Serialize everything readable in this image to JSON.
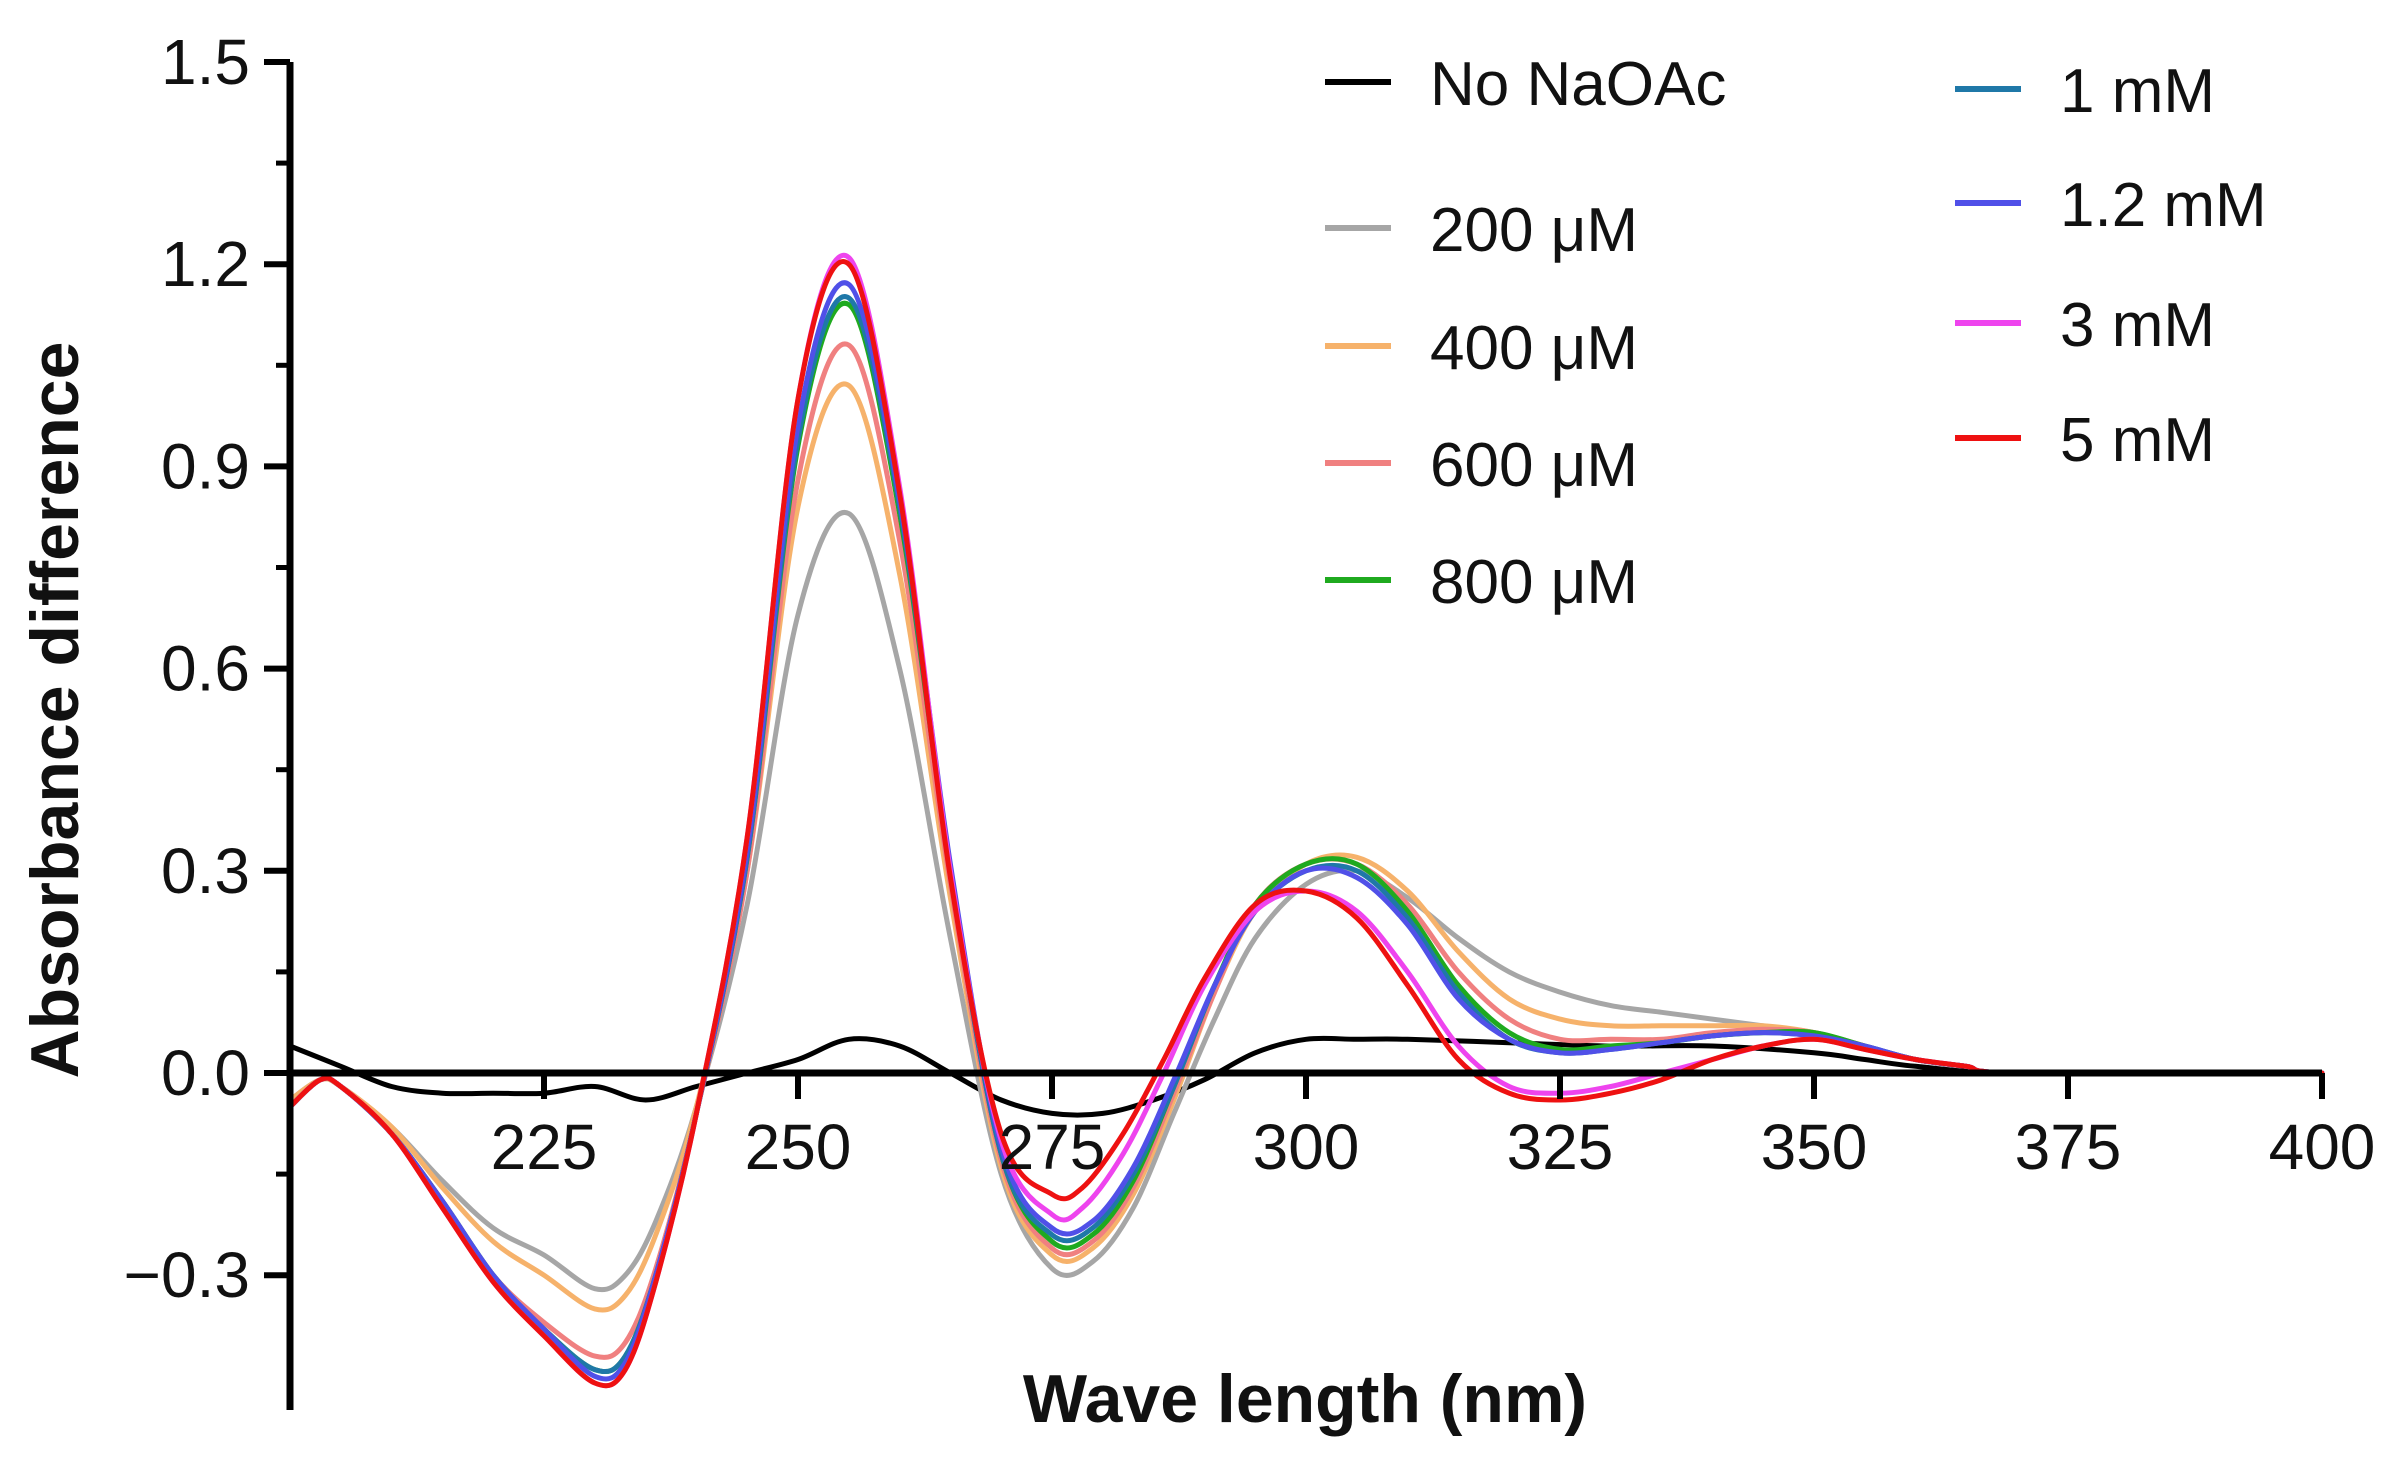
{
  "chart_data": {
    "type": "line",
    "title": "",
    "xlabel": "Wave length (nm)",
    "ylabel": "Absorbance difference",
    "xlim": [
      200,
      400
    ],
    "ylim": [
      -0.5,
      1.5
    ],
    "xticks": [
      225,
      250,
      275,
      300,
      325,
      350,
      375,
      400
    ],
    "xtick_labels": [
      "225",
      "250",
      "275",
      "300",
      "325",
      "350",
      "375",
      "400"
    ],
    "yticks": [
      -0.3,
      0.0,
      0.3,
      0.6,
      0.9,
      1.2,
      1.5
    ],
    "ytick_labels": [
      "−0.3",
      "0.0",
      "0.3",
      "0.6",
      "0.9",
      "1.2",
      "1.5"
    ],
    "grid": false,
    "legend_position": "top-right",
    "series": [
      {
        "name": "No NaOAc",
        "color": "#000000",
        "x": [
          200,
          205,
          210,
          215,
          220,
          225,
          230,
          235,
          240,
          245,
          250,
          255,
          260,
          265,
          270,
          275,
          280,
          285,
          290,
          295,
          300,
          305,
          310,
          320,
          330,
          340,
          350,
          355,
          360,
          370,
          400
        ],
        "y": [
          0.04,
          0.01,
          -0.02,
          -0.03,
          -0.03,
          -0.03,
          -0.02,
          -0.04,
          -0.02,
          0.0,
          0.02,
          0.05,
          0.04,
          0.0,
          -0.04,
          -0.06,
          -0.06,
          -0.04,
          -0.01,
          0.03,
          0.05,
          0.05,
          0.05,
          0.045,
          0.04,
          0.04,
          0.03,
          0.02,
          0.01,
          0.0,
          0.0
        ]
      },
      {
        "name": "200 μM",
        "color": "#a6a6a6",
        "x": [
          200,
          203,
          205,
          210,
          215,
          220,
          225,
          230,
          233,
          236,
          240,
          245,
          250,
          255,
          260,
          265,
          270,
          275,
          279,
          283,
          287,
          291,
          295,
          300,
          305,
          310,
          315,
          320,
          325,
          330,
          335,
          340,
          345,
          350,
          355,
          360,
          365,
          370,
          400
        ],
        "y": [
          -0.04,
          -0.01,
          -0.02,
          -0.08,
          -0.16,
          -0.23,
          -0.27,
          -0.32,
          -0.3,
          -0.22,
          -0.05,
          0.25,
          0.68,
          0.83,
          0.6,
          0.2,
          -0.15,
          -0.29,
          -0.28,
          -0.2,
          -0.06,
          0.08,
          0.2,
          0.28,
          0.3,
          0.26,
          0.2,
          0.15,
          0.12,
          0.1,
          0.09,
          0.08,
          0.07,
          0.06,
          0.04,
          0.02,
          0.01,
          0.0,
          0.0
        ]
      },
      {
        "name": "400 μM",
        "color": "#f6b26b",
        "x": [
          200,
          203,
          205,
          210,
          215,
          220,
          225,
          230,
          233,
          236,
          240,
          245,
          250,
          255,
          260,
          265,
          270,
          275,
          279,
          283,
          287,
          291,
          295,
          300,
          305,
          310,
          315,
          320,
          325,
          330,
          335,
          340,
          345,
          350,
          355,
          360,
          365,
          370,
          400
        ],
        "y": [
          -0.04,
          -0.01,
          -0.02,
          -0.08,
          -0.17,
          -0.25,
          -0.3,
          -0.35,
          -0.33,
          -0.24,
          -0.05,
          0.3,
          0.84,
          1.02,
          0.74,
          0.26,
          -0.14,
          -0.27,
          -0.26,
          -0.18,
          -0.04,
          0.12,
          0.24,
          0.31,
          0.32,
          0.27,
          0.18,
          0.11,
          0.08,
          0.07,
          0.07,
          0.07,
          0.07,
          0.06,
          0.04,
          0.02,
          0.01,
          0.0,
          0.0
        ]
      },
      {
        "name": "600 μM",
        "color": "#f08080",
        "x": [
          200,
          203,
          205,
          210,
          215,
          220,
          225,
          230,
          233,
          236,
          240,
          245,
          250,
          255,
          260,
          265,
          270,
          275,
          279,
          283,
          287,
          291,
          295,
          300,
          305,
          310,
          315,
          320,
          325,
          330,
          335,
          340,
          345,
          350,
          355,
          360,
          365,
          370,
          400
        ],
        "y": [
          -0.05,
          -0.01,
          -0.02,
          -0.09,
          -0.19,
          -0.3,
          -0.37,
          -0.42,
          -0.4,
          -0.29,
          -0.06,
          0.3,
          0.88,
          1.08,
          0.79,
          0.28,
          -0.13,
          -0.26,
          -0.25,
          -0.17,
          -0.03,
          0.12,
          0.25,
          0.31,
          0.31,
          0.25,
          0.15,
          0.08,
          0.05,
          0.05,
          0.05,
          0.06,
          0.065,
          0.06,
          0.04,
          0.02,
          0.01,
          0.0,
          0.0
        ]
      },
      {
        "name": "800 μM",
        "color": "#1faa1f",
        "x": [
          200,
          203,
          205,
          210,
          215,
          220,
          225,
          230,
          233,
          236,
          240,
          245,
          250,
          255,
          260,
          265,
          270,
          275,
          279,
          283,
          287,
          291,
          295,
          300,
          305,
          310,
          315,
          320,
          325,
          330,
          335,
          340,
          345,
          350,
          355,
          360,
          365,
          370,
          400
        ],
        "y": [
          -0.05,
          -0.01,
          -0.02,
          -0.09,
          -0.19,
          -0.3,
          -0.38,
          -0.44,
          -0.42,
          -0.3,
          -0.06,
          0.32,
          0.93,
          1.14,
          0.83,
          0.3,
          -0.12,
          -0.25,
          -0.24,
          -0.16,
          -0.02,
          0.13,
          0.25,
          0.31,
          0.31,
          0.24,
          0.13,
          0.06,
          0.035,
          0.04,
          0.045,
          0.055,
          0.06,
          0.06,
          0.04,
          0.02,
          0.01,
          0.0,
          0.0
        ]
      },
      {
        "name": "1 mM",
        "color": "#1f78a8",
        "x": [
          200,
          203,
          205,
          210,
          215,
          220,
          225,
          230,
          233,
          236,
          240,
          245,
          250,
          255,
          260,
          265,
          270,
          275,
          279,
          283,
          287,
          291,
          295,
          300,
          305,
          310,
          315,
          320,
          325,
          330,
          335,
          340,
          345,
          350,
          355,
          360,
          365,
          370,
          400
        ],
        "y": [
          -0.05,
          -0.01,
          -0.02,
          -0.09,
          -0.19,
          -0.3,
          -0.38,
          -0.44,
          -0.42,
          -0.3,
          -0.06,
          0.32,
          0.94,
          1.15,
          0.84,
          0.3,
          -0.12,
          -0.24,
          -0.23,
          -0.15,
          -0.02,
          0.13,
          0.24,
          0.3,
          0.3,
          0.23,
          0.12,
          0.05,
          0.03,
          0.035,
          0.045,
          0.055,
          0.06,
          0.055,
          0.04,
          0.02,
          0.01,
          0.0,
          0.0
        ]
      },
      {
        "name": "1.2 mM",
        "color": "#5050e8",
        "x": [
          200,
          203,
          205,
          210,
          215,
          220,
          225,
          230,
          233,
          236,
          240,
          245,
          250,
          255,
          260,
          265,
          270,
          275,
          279,
          283,
          287,
          291,
          295,
          300,
          305,
          310,
          315,
          320,
          325,
          330,
          335,
          340,
          345,
          350,
          355,
          360,
          365,
          370,
          400
        ],
        "y": [
          -0.05,
          -0.01,
          -0.02,
          -0.09,
          -0.19,
          -0.3,
          -0.38,
          -0.45,
          -0.43,
          -0.3,
          -0.06,
          0.33,
          0.96,
          1.17,
          0.85,
          0.31,
          -0.11,
          -0.23,
          -0.22,
          -0.14,
          -0.01,
          0.13,
          0.24,
          0.3,
          0.29,
          0.22,
          0.11,
          0.05,
          0.03,
          0.035,
          0.045,
          0.055,
          0.06,
          0.055,
          0.04,
          0.02,
          0.01,
          0.0,
          0.0
        ]
      },
      {
        "name": "3 mM",
        "color": "#ee44ee",
        "x": [
          200,
          203,
          205,
          210,
          215,
          220,
          225,
          230,
          233,
          236,
          240,
          245,
          250,
          255,
          260,
          265,
          270,
          275,
          278,
          282,
          286,
          290,
          295,
          300,
          305,
          310,
          315,
          320,
          325,
          330,
          335,
          340,
          345,
          350,
          355,
          360,
          365,
          370,
          400
        ],
        "y": [
          -0.05,
          -0.01,
          -0.02,
          -0.09,
          -0.2,
          -0.31,
          -0.39,
          -0.46,
          -0.44,
          -0.31,
          -0.06,
          0.35,
          1.0,
          1.21,
          0.87,
          0.3,
          -0.1,
          -0.21,
          -0.2,
          -0.12,
          0.0,
          0.13,
          0.24,
          0.27,
          0.24,
          0.15,
          0.04,
          -0.02,
          -0.03,
          -0.02,
          0.0,
          0.02,
          0.04,
          0.05,
          0.035,
          0.02,
          0.01,
          0.0,
          0.0
        ]
      },
      {
        "name": "5 mM",
        "color": "#ee1111",
        "x": [
          200,
          203,
          205,
          210,
          215,
          220,
          225,
          230,
          233,
          236,
          240,
          245,
          250,
          255,
          260,
          265,
          270,
          275,
          278,
          282,
          286,
          290,
          295,
          300,
          305,
          310,
          315,
          320,
          325,
          330,
          335,
          340,
          345,
          350,
          355,
          360,
          365,
          370,
          400
        ],
        "y": [
          -0.05,
          -0.01,
          -0.02,
          -0.09,
          -0.2,
          -0.31,
          -0.39,
          -0.46,
          -0.44,
          -0.31,
          -0.06,
          0.35,
          1.0,
          1.2,
          0.86,
          0.29,
          -0.09,
          -0.18,
          -0.17,
          -0.09,
          0.02,
          0.14,
          0.25,
          0.27,
          0.23,
          0.13,
          0.02,
          -0.03,
          -0.04,
          -0.03,
          -0.01,
          0.02,
          0.04,
          0.05,
          0.035,
          0.02,
          0.01,
          0.0,
          0.0
        ]
      }
    ],
    "legend_columns": [
      [
        "No NaOAc",
        "200 μM",
        "400 μM",
        "600 μM",
        "800 μM"
      ],
      [
        "1 mM",
        "1.2 mM",
        "3 mM",
        "5 mM"
      ]
    ]
  }
}
